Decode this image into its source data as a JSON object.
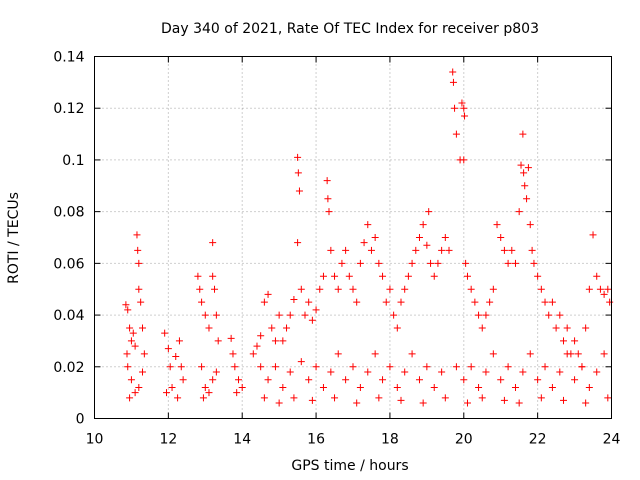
{
  "chart_data": {
    "type": "scatter",
    "title": "Day 340 of 2021, Rate Of TEC Index for receiver p803",
    "xlabel": "GPS time / hours",
    "ylabel": "ROTI / TECUs",
    "xlim": [
      10,
      24
    ],
    "ylim": [
      0,
      0.14
    ],
    "xticks": [
      10,
      12,
      14,
      16,
      18,
      20,
      22,
      24
    ],
    "xtick_labels": [
      "10",
      "12",
      "14",
      "16",
      "18",
      "20",
      "22",
      "24"
    ],
    "yticks": [
      0,
      0.02,
      0.04,
      0.06,
      0.08,
      0.1,
      0.12,
      0.14
    ],
    "ytick_labels": [
      "0",
      "0.02",
      "0.04",
      "0.06",
      "0.08",
      "0.1",
      "0.12",
      "0.14"
    ],
    "grid": true,
    "marker": "+",
    "color": "#ff0000",
    "series": [
      {
        "name": "p803",
        "points": [
          [
            10.85,
            0.044
          ],
          [
            10.9,
            0.042
          ],
          [
            10.95,
            0.035
          ],
          [
            11.0,
            0.03
          ],
          [
            11.05,
            0.033
          ],
          [
            11.1,
            0.028
          ],
          [
            11.15,
            0.071
          ],
          [
            11.17,
            0.065
          ],
          [
            11.2,
            0.06
          ],
          [
            11.2,
            0.05
          ],
          [
            11.25,
            0.045
          ],
          [
            11.3,
            0.035
          ],
          [
            10.9,
            0.02
          ],
          [
            11.0,
            0.015
          ],
          [
            11.1,
            0.01
          ],
          [
            11.2,
            0.012
          ],
          [
            10.95,
            0.008
          ],
          [
            11.3,
            0.018
          ],
          [
            11.35,
            0.025
          ],
          [
            10.88,
            0.025
          ],
          [
            11.9,
            0.033
          ],
          [
            12.0,
            0.027
          ],
          [
            12.05,
            0.02
          ],
          [
            12.1,
            0.012
          ],
          [
            12.2,
            0.024
          ],
          [
            12.3,
            0.03
          ],
          [
            12.35,
            0.02
          ],
          [
            12.4,
            0.015
          ],
          [
            11.95,
            0.01
          ],
          [
            12.25,
            0.008
          ],
          [
            12.8,
            0.055
          ],
          [
            12.85,
            0.05
          ],
          [
            12.9,
            0.045
          ],
          [
            13.0,
            0.04
          ],
          [
            13.1,
            0.035
          ],
          [
            13.2,
            0.068
          ],
          [
            13.2,
            0.055
          ],
          [
            13.25,
            0.05
          ],
          [
            13.3,
            0.04
          ],
          [
            13.35,
            0.03
          ],
          [
            12.9,
            0.02
          ],
          [
            13.0,
            0.012
          ],
          [
            13.1,
            0.01
          ],
          [
            13.2,
            0.015
          ],
          [
            12.95,
            0.008
          ],
          [
            13.3,
            0.018
          ],
          [
            13.7,
            0.031
          ],
          [
            13.75,
            0.025
          ],
          [
            13.8,
            0.02
          ],
          [
            13.9,
            0.015
          ],
          [
            14.0,
            0.012
          ],
          [
            13.85,
            0.01
          ],
          [
            14.3,
            0.025
          ],
          [
            14.4,
            0.028
          ],
          [
            14.5,
            0.032
          ],
          [
            14.6,
            0.045
          ],
          [
            14.7,
            0.048
          ],
          [
            14.8,
            0.035
          ],
          [
            14.9,
            0.03
          ],
          [
            15.0,
            0.04
          ],
          [
            15.1,
            0.03
          ],
          [
            15.2,
            0.035
          ],
          [
            15.3,
            0.04
          ],
          [
            15.4,
            0.046
          ],
          [
            15.5,
            0.101
          ],
          [
            15.52,
            0.095
          ],
          [
            15.55,
            0.088
          ],
          [
            15.5,
            0.068
          ],
          [
            15.6,
            0.05
          ],
          [
            15.7,
            0.04
          ],
          [
            15.8,
            0.045
          ],
          [
            15.9,
            0.038
          ],
          [
            16.0,
            0.042
          ],
          [
            16.1,
            0.05
          ],
          [
            16.2,
            0.055
          ],
          [
            16.3,
            0.092
          ],
          [
            16.32,
            0.085
          ],
          [
            16.35,
            0.08
          ],
          [
            16.4,
            0.065
          ],
          [
            16.5,
            0.055
          ],
          [
            16.6,
            0.05
          ],
          [
            16.7,
            0.06
          ],
          [
            16.8,
            0.065
          ],
          [
            16.9,
            0.055
          ],
          [
            17.0,
            0.05
          ],
          [
            17.1,
            0.045
          ],
          [
            17.2,
            0.06
          ],
          [
            17.3,
            0.068
          ],
          [
            17.4,
            0.075
          ],
          [
            17.5,
            0.065
          ],
          [
            17.6,
            0.07
          ],
          [
            17.7,
            0.06
          ],
          [
            17.8,
            0.055
          ],
          [
            17.9,
            0.045
          ],
          [
            18.0,
            0.05
          ],
          [
            18.1,
            0.04
          ],
          [
            18.2,
            0.035
          ],
          [
            18.3,
            0.045
          ],
          [
            18.4,
            0.05
          ],
          [
            18.5,
            0.055
          ],
          [
            18.6,
            0.06
          ],
          [
            18.7,
            0.065
          ],
          [
            18.8,
            0.07
          ],
          [
            18.9,
            0.075
          ],
          [
            19.0,
            0.067
          ],
          [
            19.05,
            0.08
          ],
          [
            19.1,
            0.06
          ],
          [
            19.2,
            0.055
          ],
          [
            19.3,
            0.06
          ],
          [
            19.4,
            0.065
          ],
          [
            19.5,
            0.07
          ],
          [
            19.6,
            0.065
          ],
          [
            14.5,
            0.02
          ],
          [
            14.7,
            0.015
          ],
          [
            14.9,
            0.02
          ],
          [
            15.1,
            0.012
          ],
          [
            15.3,
            0.018
          ],
          [
            15.6,
            0.022
          ],
          [
            15.8,
            0.015
          ],
          [
            16.0,
            0.02
          ],
          [
            16.2,
            0.012
          ],
          [
            16.4,
            0.018
          ],
          [
            16.6,
            0.025
          ],
          [
            16.8,
            0.015
          ],
          [
            17.0,
            0.02
          ],
          [
            17.2,
            0.012
          ],
          [
            17.4,
            0.018
          ],
          [
            17.6,
            0.025
          ],
          [
            17.8,
            0.015
          ],
          [
            18.0,
            0.02
          ],
          [
            18.2,
            0.012
          ],
          [
            18.4,
            0.018
          ],
          [
            18.6,
            0.025
          ],
          [
            18.8,
            0.015
          ],
          [
            19.0,
            0.02
          ],
          [
            19.2,
            0.012
          ],
          [
            19.4,
            0.018
          ],
          [
            14.6,
            0.008
          ],
          [
            15.0,
            0.006
          ],
          [
            15.4,
            0.008
          ],
          [
            15.9,
            0.007
          ],
          [
            16.5,
            0.008
          ],
          [
            17.1,
            0.006
          ],
          [
            17.7,
            0.008
          ],
          [
            18.3,
            0.007
          ],
          [
            18.9,
            0.006
          ],
          [
            19.5,
            0.008
          ],
          [
            19.7,
            0.134
          ],
          [
            19.72,
            0.13
          ],
          [
            19.75,
            0.12
          ],
          [
            19.8,
            0.11
          ],
          [
            19.9,
            0.1
          ],
          [
            19.95,
            0.122
          ],
          [
            20.0,
            0.12
          ],
          [
            20.02,
            0.117
          ],
          [
            20.0,
            0.1
          ],
          [
            20.05,
            0.06
          ],
          [
            20.1,
            0.055
          ],
          [
            20.2,
            0.05
          ],
          [
            20.3,
            0.045
          ],
          [
            20.4,
            0.04
          ],
          [
            20.5,
            0.035
          ],
          [
            20.6,
            0.04
          ],
          [
            20.7,
            0.045
          ],
          [
            20.8,
            0.05
          ],
          [
            20.9,
            0.075
          ],
          [
            21.0,
            0.07
          ],
          [
            21.1,
            0.065
          ],
          [
            21.2,
            0.06
          ],
          [
            21.3,
            0.065
          ],
          [
            21.4,
            0.06
          ],
          [
            21.5,
            0.08
          ],
          [
            21.55,
            0.098
          ],
          [
            21.6,
            0.11
          ],
          [
            21.62,
            0.095
          ],
          [
            21.65,
            0.09
          ],
          [
            21.7,
            0.085
          ],
          [
            21.75,
            0.097
          ],
          [
            21.8,
            0.075
          ],
          [
            21.85,
            0.065
          ],
          [
            21.9,
            0.06
          ],
          [
            22.0,
            0.055
          ],
          [
            22.1,
            0.05
          ],
          [
            22.2,
            0.045
          ],
          [
            22.3,
            0.04
          ],
          [
            22.4,
            0.045
          ],
          [
            22.5,
            0.035
          ],
          [
            22.6,
            0.04
          ],
          [
            22.7,
            0.03
          ],
          [
            22.8,
            0.035
          ],
          [
            22.9,
            0.025
          ],
          [
            23.0,
            0.03
          ],
          [
            23.1,
            0.025
          ],
          [
            23.2,
            0.02
          ],
          [
            23.3,
            0.035
          ],
          [
            23.4,
            0.05
          ],
          [
            23.5,
            0.071
          ],
          [
            23.6,
            0.055
          ],
          [
            23.7,
            0.05
          ],
          [
            23.8,
            0.048
          ],
          [
            23.9,
            0.05
          ],
          [
            23.95,
            0.045
          ],
          [
            19.8,
            0.02
          ],
          [
            20.0,
            0.015
          ],
          [
            20.2,
            0.02
          ],
          [
            20.4,
            0.012
          ],
          [
            20.6,
            0.018
          ],
          [
            20.8,
            0.025
          ],
          [
            21.0,
            0.015
          ],
          [
            21.2,
            0.02
          ],
          [
            21.4,
            0.012
          ],
          [
            21.6,
            0.018
          ],
          [
            21.8,
            0.025
          ],
          [
            22.0,
            0.015
          ],
          [
            22.2,
            0.02
          ],
          [
            22.4,
            0.012
          ],
          [
            22.6,
            0.018
          ],
          [
            22.8,
            0.025
          ],
          [
            23.0,
            0.015
          ],
          [
            23.2,
            0.02
          ],
          [
            23.4,
            0.012
          ],
          [
            23.6,
            0.018
          ],
          [
            23.8,
            0.025
          ],
          [
            20.1,
            0.006
          ],
          [
            20.5,
            0.008
          ],
          [
            21.1,
            0.007
          ],
          [
            21.5,
            0.006
          ],
          [
            22.1,
            0.008
          ],
          [
            22.7,
            0.007
          ],
          [
            23.3,
            0.006
          ],
          [
            23.9,
            0.008
          ]
        ]
      }
    ]
  }
}
